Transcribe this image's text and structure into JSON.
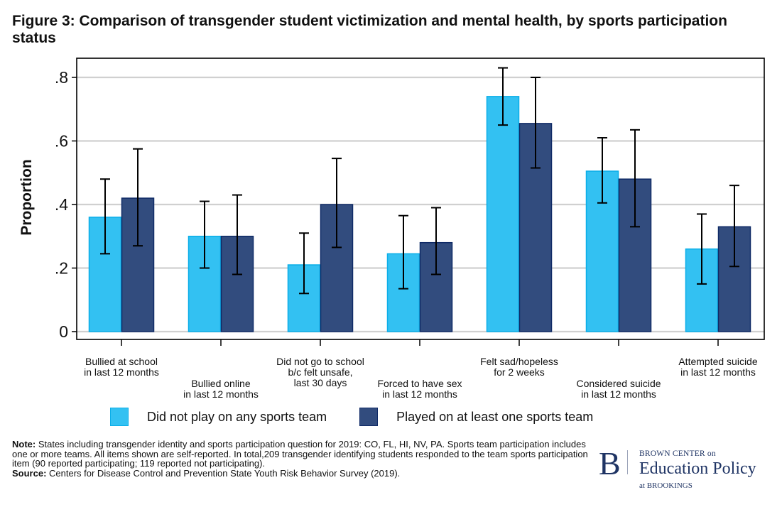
{
  "figure": {
    "title": "Figure 3: Comparison of transgender student victimization and mental health, by sports participation status"
  },
  "colors": {
    "did_not_play": "#33c1f2",
    "did_not_play_border": "#0aaee8",
    "played": "#324c7e",
    "played_border": "#0f2a66",
    "gridline": "#d0d0d0",
    "axis": "#000000",
    "error_bar": "#000000"
  },
  "chart_data": {
    "type": "bar",
    "title": "Figure 3: Comparison of transgender student victimization and mental health, by sports participation status",
    "xlabel": "",
    "ylabel": "Proportion",
    "ylim": [
      0,
      0.8
    ],
    "yticks": [
      0,
      0.2,
      0.4,
      0.6,
      0.8
    ],
    "ytick_labels": [
      "0",
      ".2",
      ".4",
      ".6",
      ".8"
    ],
    "grid": true,
    "legend_position": "bottom",
    "categories": [
      [
        "Bullied at school",
        "in last 12 months"
      ],
      [
        "Bullied online",
        "in last 12 months"
      ],
      [
        "Did not go to school",
        "b/c felt unsafe,",
        "last 30 days"
      ],
      [
        "Forced to have sex",
        "in last 12 months"
      ],
      [
        "Felt sad/hopeless",
        "for 2 weeks"
      ],
      [
        "Considered suicide",
        "in last 12 months"
      ],
      [
        "Attempted suicide",
        "in last 12 months"
      ]
    ],
    "category_label_row": [
      0,
      1,
      0,
      1,
      0,
      1,
      0
    ],
    "series": [
      {
        "name": "Did not play on any sports team",
        "values": [
          0.36,
          0.3,
          0.21,
          0.245,
          0.74,
          0.505,
          0.26
        ],
        "ci_low": [
          0.245,
          0.2,
          0.12,
          0.135,
          0.65,
          0.405,
          0.15
        ],
        "ci_high": [
          0.48,
          0.41,
          0.31,
          0.365,
          0.83,
          0.61,
          0.37
        ]
      },
      {
        "name": "Played on at least one sports team",
        "values": [
          0.42,
          0.3,
          0.4,
          0.28,
          0.655,
          0.48,
          0.33
        ],
        "ci_low": [
          0.27,
          0.18,
          0.265,
          0.18,
          0.515,
          0.33,
          0.205
        ],
        "ci_high": [
          0.575,
          0.43,
          0.545,
          0.39,
          0.8,
          0.635,
          0.46
        ]
      }
    ]
  },
  "notes": {
    "note_label": "Note:",
    "note_text": " States including transgender identity and sports participation question for 2019: CO, FL, HI, NV, PA. Sports team participation includes one or more teams. All items shown are self-reported. In total,209 transgender identifying students responded to the team sports participation item (90 reported participating; 119 reported not participating).",
    "source_label": "Source:",
    "source_text": " Centers for Disease Control and Prevention State Youth Risk Behavior Survey (2019)."
  },
  "logo": {
    "letter": "B",
    "line1": "BROWN CENTER on",
    "line2": "Education Policy",
    "line3": "at BROOKINGS"
  }
}
